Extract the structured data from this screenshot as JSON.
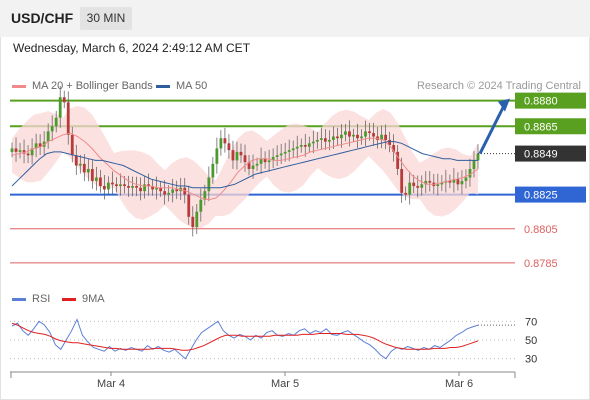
{
  "header": {
    "pair": "USD/CHF",
    "timeframe": "30 MIN"
  },
  "datetime": "Wednesday, March 6, 2024 2:49:12 AM CET",
  "legend": {
    "main": [
      {
        "label": "MA 20 + Bollinger Bands",
        "color": "#f08a8a"
      },
      {
        "label": "MA 50",
        "color": "#2f5e9e"
      }
    ],
    "rsi": [
      {
        "label": "RSI",
        "color": "#5b7fd6"
      },
      {
        "label": "9MA",
        "color": "#e02020"
      }
    ]
  },
  "credit": "Research © 2024 Trading Central",
  "colors": {
    "green": "#5aa020",
    "blue": "#2f66d4",
    "red": "#e06060",
    "current": "#333333",
    "arrow": "#2a5fae"
  },
  "chart_data": {
    "type": "candlestick",
    "pair": "USD/CHF",
    "timeframe": "30 MIN",
    "ylim": [
      0.8775,
      0.8895
    ],
    "x_ticks": [
      "Mar 4",
      "Mar 5",
      "Mar 6"
    ],
    "current_price": {
      "label": "0.8849",
      "value": 0.8849
    },
    "levels": [
      {
        "label": "0.8880",
        "value": 0.888,
        "kind": "resistance",
        "color": "#5aa020"
      },
      {
        "label": "0.8865",
        "value": 0.8865,
        "kind": "resistance",
        "color": "#5aa020"
      },
      {
        "label": "0.8825",
        "value": 0.8825,
        "kind": "pivot",
        "color": "#2f66d4"
      },
      {
        "label": "0.8805",
        "value": 0.8805,
        "kind": "support",
        "color": "#e06060"
      },
      {
        "label": "0.8785",
        "value": 0.8785,
        "kind": "support",
        "color": "#e06060"
      }
    ],
    "forecast_arrow": {
      "from": 0.8849,
      "to": 0.888
    },
    "close_path": [
      0.8852,
      0.885,
      0.8851,
      0.8849,
      0.8848,
      0.8852,
      0.8855,
      0.8853,
      0.8856,
      0.8862,
      0.8865,
      0.887,
      0.8882,
      0.8879,
      0.886,
      0.8848,
      0.8842,
      0.8843,
      0.8838,
      0.884,
      0.8833,
      0.8835,
      0.883,
      0.8828,
      0.8832,
      0.8831,
      0.883,
      0.8831,
      0.883,
      0.8829,
      0.883,
      0.8829,
      0.8827,
      0.8831,
      0.883,
      0.8828,
      0.8829,
      0.8827,
      0.8825,
      0.8826,
      0.8828,
      0.8827,
      0.8829,
      0.8825,
      0.8812,
      0.8806,
      0.8815,
      0.8822,
      0.8827,
      0.8835,
      0.8843,
      0.8852,
      0.8858,
      0.8855,
      0.8851,
      0.8845,
      0.885,
      0.8848,
      0.8844,
      0.884,
      0.8842,
      0.8843,
      0.8846,
      0.8844,
      0.8845,
      0.8847,
      0.8848,
      0.8849,
      0.885,
      0.8851,
      0.8852,
      0.8853,
      0.8854,
      0.8853,
      0.8855,
      0.8856,
      0.8857,
      0.8858,
      0.8856,
      0.8857,
      0.8859,
      0.8858,
      0.886,
      0.8862,
      0.8859,
      0.886,
      0.8858,
      0.8859,
      0.8862,
      0.8861,
      0.8859,
      0.8857,
      0.886,
      0.8857,
      0.8854,
      0.885,
      0.884,
      0.8826,
      0.8825,
      0.8832,
      0.883,
      0.8829,
      0.8831,
      0.8833,
      0.8832,
      0.883,
      0.8831,
      0.8832,
      0.8833,
      0.8832,
      0.8834,
      0.8831,
      0.8833,
      0.8835,
      0.884,
      0.8845,
      0.8849
    ],
    "ma50": [
      0.883,
      0.8834,
      0.8838,
      0.8842,
      0.8846,
      0.8849,
      0.885,
      0.885,
      0.8849,
      0.8848,
      0.8847,
      0.8846,
      0.8845,
      0.8845,
      0.8844,
      0.8843,
      0.8842,
      0.884,
      0.8838,
      0.8836,
      0.8834,
      0.8833,
      0.8832,
      0.8831,
      0.883,
      0.883,
      0.8829,
      0.8829,
      0.8829,
      0.8829,
      0.8829,
      0.883,
      0.8831,
      0.8833,
      0.8835,
      0.8837,
      0.8838,
      0.8839,
      0.884,
      0.8841,
      0.8842,
      0.8843,
      0.8844,
      0.8845,
      0.8846,
      0.8847,
      0.8848,
      0.8849,
      0.885,
      0.8851,
      0.8852,
      0.8853,
      0.8854,
      0.8855,
      0.8856,
      0.8856,
      0.8855,
      0.8853,
      0.8851,
      0.8849,
      0.8848,
      0.8847,
      0.8846,
      0.8846,
      0.8845,
      0.8845,
      0.8845,
      0.8845
    ],
    "ma20": [
      0.8848,
      0.8849,
      0.885,
      0.8852,
      0.8853,
      0.8856,
      0.8858,
      0.886,
      0.8861,
      0.8859,
      0.8856,
      0.8852,
      0.8847,
      0.8843,
      0.8839,
      0.8836,
      0.8833,
      0.8831,
      0.883,
      0.883,
      0.8829,
      0.8829,
      0.8829,
      0.8828,
      0.8827,
      0.8825,
      0.8823,
      0.8822,
      0.8823,
      0.8827,
      0.8832,
      0.8838,
      0.8842,
      0.8845,
      0.8846,
      0.8846,
      0.8845,
      0.8845,
      0.8846,
      0.8847,
      0.8848,
      0.885,
      0.8851,
      0.8852,
      0.8853,
      0.8854,
      0.8855,
      0.8856,
      0.8857,
      0.8858,
      0.8858,
      0.8857,
      0.8853,
      0.8847,
      0.8841,
      0.8836,
      0.8833,
      0.8831,
      0.8831,
      0.8832,
      0.8833,
      0.8834,
      0.8835,
      0.8837,
      0.884
    ],
    "rsi": {
      "ticks": [
        70,
        50,
        30
      ],
      "ylim": [
        20,
        80
      ],
      "rsi": [
        65,
        68,
        60,
        55,
        62,
        70,
        66,
        58,
        45,
        40,
        50,
        60,
        72,
        55,
        48,
        42,
        40,
        38,
        43,
        38,
        41,
        39,
        42,
        40,
        38,
        44,
        40,
        43,
        39,
        37,
        40,
        35,
        30,
        40,
        50,
        58,
        62,
        66,
        70,
        60,
        55,
        52,
        56,
        54,
        50,
        55,
        52,
        58,
        60,
        55,
        54,
        57,
        55,
        60,
        62,
        57,
        60,
        58,
        62,
        56,
        55,
        58,
        60,
        56,
        52,
        48,
        45,
        40,
        34,
        30,
        38,
        42,
        40,
        43,
        41,
        39,
        42,
        40,
        44,
        42,
        46,
        50,
        55,
        58,
        62,
        64,
        66
      ],
      "ma9": [
        68,
        66,
        63,
        60,
        58,
        57,
        56,
        54,
        51,
        49,
        48,
        47,
        47,
        46,
        45,
        44,
        43,
        42,
        41,
        41,
        40,
        40,
        40,
        40,
        40,
        40,
        41,
        41,
        41,
        41,
        40,
        39,
        39,
        40,
        42,
        44,
        47,
        50,
        53,
        55,
        55,
        55,
        54,
        54,
        54,
        54,
        54,
        54,
        55,
        55,
        55,
        55,
        55,
        56,
        56,
        56,
        57,
        57,
        57,
        57,
        57,
        56,
        56,
        56,
        55,
        54,
        52,
        49,
        46,
        44,
        42,
        41,
        40,
        40,
        40,
        40,
        40,
        41,
        41,
        41,
        42,
        42,
        43,
        45,
        47,
        49
      ]
    }
  }
}
